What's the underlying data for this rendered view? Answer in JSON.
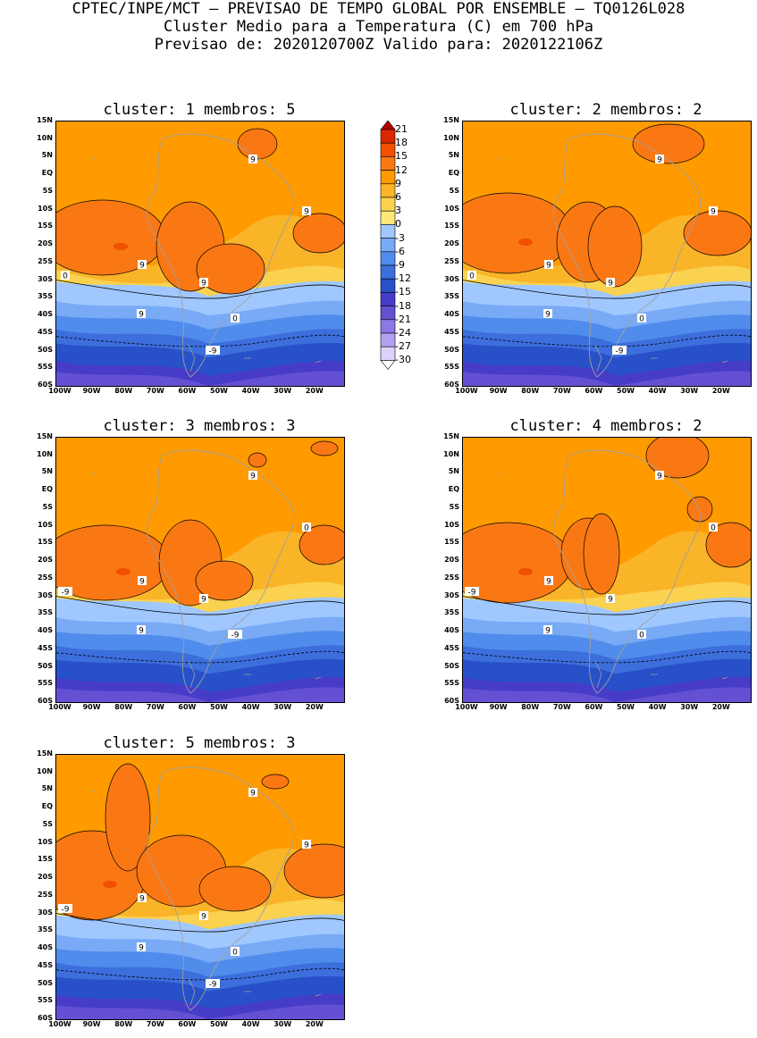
{
  "header": {
    "line1": "CPTEC/INPE/MCT – PREVISAO DE TEMPO GLOBAL POR ENSEMBLE – TQ0126L028",
    "line2": "Cluster Medio para a Temperatura (C) em 700 hPa",
    "line3": "Previsao de: 2020120700Z   Valido para: 2020122106Z"
  },
  "lat_ticks": [
    "15N",
    "10N",
    "5N",
    "EQ",
    "5S",
    "10S",
    "15S",
    "20S",
    "25S",
    "30S",
    "35S",
    "40S",
    "45S",
    "50S",
    "55S",
    "60S"
  ],
  "lon_ticks": [
    "100W",
    "90W",
    "80W",
    "70W",
    "60W",
    "50W",
    "40W",
    "30W",
    "20W"
  ],
  "colorbar": {
    "labels": [
      "21",
      "18",
      "15",
      "12",
      "9",
      "6",
      "3",
      "0",
      "-3",
      "-6",
      "-9",
      "-12",
      "-15",
      "-18",
      "-21",
      "-24",
      "-27",
      "-30"
    ],
    "colors": [
      "#b40000",
      "#dc2800",
      "#f05000",
      "#fa7814",
      "#ff9a00",
      "#fab428",
      "#fad250",
      "#ffe878",
      "#a0c8ff",
      "#78aaf5",
      "#508ceb",
      "#3c6edc",
      "#2850c8",
      "#463cc8",
      "#6450d2",
      "#8c78e6",
      "#b4a0f0",
      "#dcd2fa",
      "#ffffff"
    ]
  },
  "panels": [
    {
      "title": "cluster: 1   membros: 5",
      "labels": [
        "9",
        "9",
        "9",
        "9",
        "9",
        "0",
        "0",
        "-9"
      ]
    },
    {
      "title": "cluster: 2   membros: 2",
      "labels": [
        "9",
        "9",
        "9",
        "9",
        "9",
        "0",
        "0",
        "-9"
      ]
    },
    {
      "title": "cluster: 3   membros: 3",
      "labels": [
        "9",
        "9",
        "9",
        "9",
        "0",
        "-9",
        "-9"
      ]
    },
    {
      "title": "cluster: 4   membros: 2",
      "labels": [
        "9",
        "9",
        "9",
        "9",
        "0",
        "0",
        "-9"
      ]
    },
    {
      "title": "cluster: 5   membros: 3",
      "labels": [
        "9",
        "9",
        "9",
        "9",
        "9",
        "0",
        "-9",
        "-9"
      ]
    }
  ]
}
